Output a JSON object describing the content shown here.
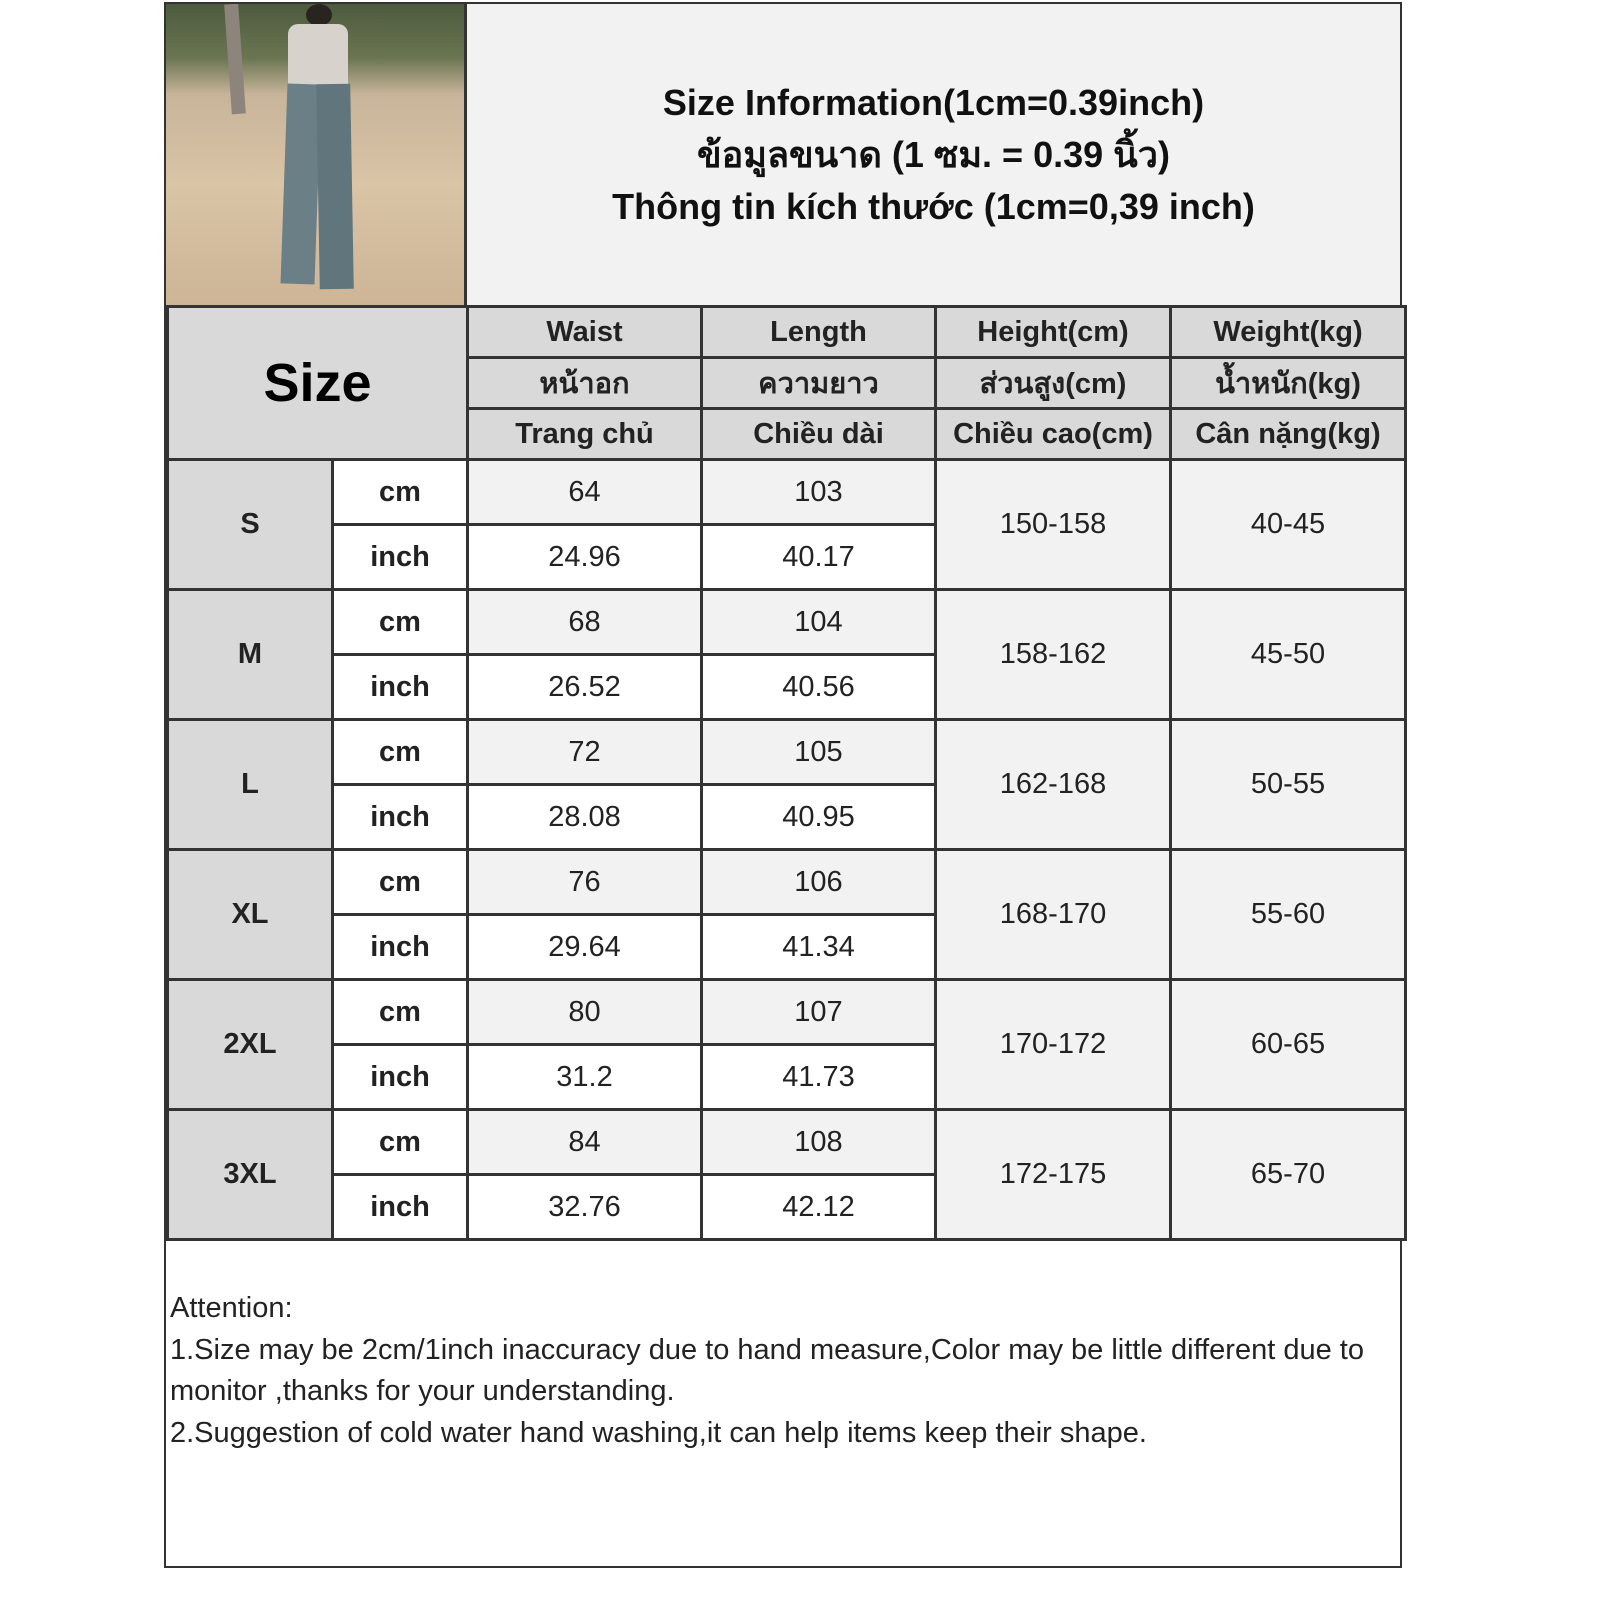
{
  "title_lines": [
    "Size Information(1cm=0.39inch)",
    "ข้อมูลขนาด (1 ซม. = 0.39 นิ้ว)",
    "Thông tin kích thước (1cm=0,39 inch)"
  ],
  "size_header": "Size",
  "columns": [
    {
      "en": "Waist",
      "th": "หน้าอก",
      "vi": "Trang chủ"
    },
    {
      "en": "Length",
      "th": "ความยาว",
      "vi": "Chiều dài"
    },
    {
      "en": "Height(cm)",
      "th": "ส่วนสูง(cm)",
      "vi": "Chiều cao(cm)"
    },
    {
      "en": "Weight(kg)",
      "th": "น้ำหนัก(kg)",
      "vi": "Cân nặng(kg)"
    }
  ],
  "units": {
    "cm": "cm",
    "inch": "inch"
  },
  "rows": [
    {
      "size": "S",
      "waist_cm": "64",
      "length_cm": "103",
      "waist_in": "24.96",
      "length_in": "40.17",
      "height": "150-158",
      "weight": "40-45"
    },
    {
      "size": "M",
      "waist_cm": "68",
      "length_cm": "104",
      "waist_in": "26.52",
      "length_in": "40.56",
      "height": "158-162",
      "weight": "45-50"
    },
    {
      "size": "L",
      "waist_cm": "72",
      "length_cm": "105",
      "waist_in": "28.08",
      "length_in": "40.95",
      "height": "162-168",
      "weight": "50-55"
    },
    {
      "size": "XL",
      "waist_cm": "76",
      "length_cm": "106",
      "waist_in": "29.64",
      "length_in": "41.34",
      "height": "168-170",
      "weight": "55-60"
    },
    {
      "size": "2XL",
      "waist_cm": "80",
      "length_cm": "107",
      "waist_in": "31.2",
      "length_in": "41.73",
      "height": "170-172",
      "weight": "60-65"
    },
    {
      "size": "3XL",
      "waist_cm": "84",
      "length_cm": "108",
      "waist_in": "32.76",
      "length_in": "42.12",
      "height": "172-175",
      "weight": "65-70"
    }
  ],
  "notes": [
    "Attention:",
    "1.Size may be 2cm/1inch inaccuracy due to hand measure,Color may be little different due to monitor ,thanks for your understanding.",
    "2.Suggestion of cold water hand washing,it can help items keep their shape."
  ]
}
